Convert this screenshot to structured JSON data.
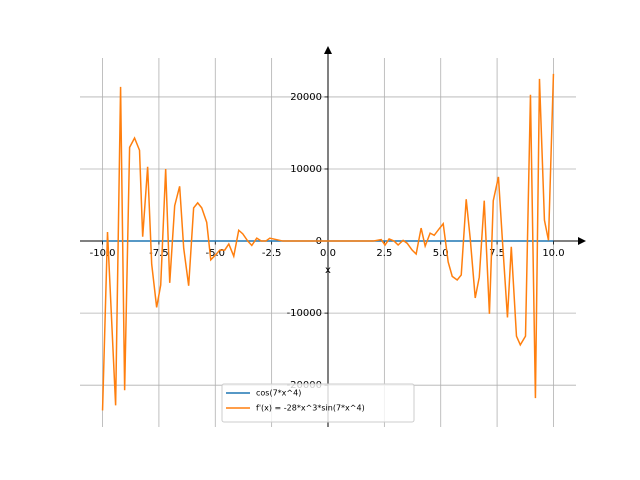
{
  "chart_data": {
    "type": "line",
    "xlabel": "x",
    "xlim": [
      -11,
      11
    ],
    "ylim": [
      -25800,
      25400
    ],
    "xticks": [
      {
        "value": -10,
        "label": "-10.0"
      },
      -7.5,
      {
        "value": -5,
        "label": "-5.0"
      },
      -2.5,
      {
        "value": 0,
        "label": "0.0"
      },
      2.5,
      {
        "value": 5,
        "label": "5.0"
      },
      7.5,
      {
        "value": 10,
        "label": "10.0"
      }
    ],
    "yticks": [
      -20000,
      -10000,
      0,
      10000,
      20000
    ],
    "grid": true,
    "legend": "lower center",
    "series": [
      {
        "name": "cos(7*x^4)",
        "color": "#1f77b4",
        "x": [
          -10,
          10
        ],
        "values": [
          0,
          0
        ]
      },
      {
        "name": "f'(x) = -28*x^3*sin(7*x^4)",
        "color": "#ff7f0e",
        "x": [
          -10,
          -9.78,
          -9.42,
          -9.2,
          -9.02,
          -8.8,
          -8.58,
          -8.36,
          -8.22,
          -8.0,
          -7.82,
          -7.6,
          -7.42,
          -7.2,
          -7.02,
          -6.8,
          -6.58,
          -6.4,
          -6.18,
          -5.96,
          -5.78,
          -5.6,
          -5.38,
          -5.2,
          -4.98,
          -4.8,
          -4.58,
          -4.4,
          -4.18,
          -3.96,
          -3.78,
          -3.56,
          -3.38,
          -3.16,
          -2.96,
          -2.76,
          -2.58,
          -2.0,
          0,
          2.0,
          2.36,
          2.53,
          2.71,
          2.93,
          3.11,
          3.33,
          3.51,
          3.73,
          3.91,
          4.13,
          4.31,
          4.53,
          4.71,
          4.93,
          5.11,
          5.33,
          5.51,
          5.73,
          5.91,
          6.13,
          6.31,
          6.53,
          6.71,
          6.93,
          7.16,
          7.33,
          7.56,
          7.73,
          7.96,
          8.13,
          8.36,
          8.53,
          8.76,
          8.98,
          9.2,
          9.38,
          9.6,
          9.78,
          10
        ],
        "values": [
          -23500,
          1250,
          -22800,
          21400,
          -20700,
          13000,
          14300,
          12600,
          600,
          10300,
          -3200,
          -9200,
          -6100,
          10000,
          -5800,
          4900,
          7600,
          -1000,
          -6200,
          4600,
          5300,
          4600,
          2600,
          -2600,
          -1900,
          -1250,
          -1250,
          -400,
          -2100,
          1500,
          1000,
          0,
          -600,
          400,
          0,
          0,
          400,
          0,
          0,
          0,
          200,
          -550,
          300,
          0,
          -550,
          100,
          -300,
          -1250,
          -1800,
          1800,
          -700,
          1100,
          800,
          1700,
          2400,
          -2900,
          -4900,
          -5400,
          -4700,
          5800,
          300,
          -7900,
          -5000,
          5600,
          -10100,
          5600,
          8900,
          400,
          -10600,
          -800,
          -13200,
          -14400,
          -13200,
          20300,
          -21800,
          22500,
          2900,
          100,
          23200
        ]
      }
    ]
  }
}
